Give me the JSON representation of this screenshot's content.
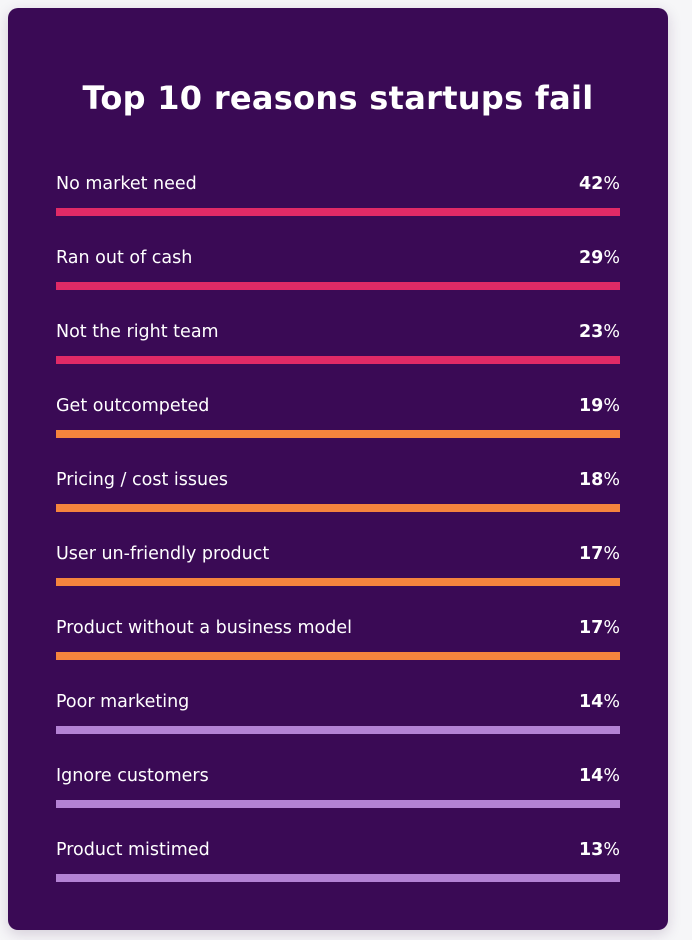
{
  "chart_data": {
    "type": "bar",
    "title": "Top 10 reasons startups fail",
    "unit": "%",
    "categories": [
      "No market need",
      "Ran out of cash",
      "Not the right team",
      "Get outcompeted",
      "Pricing / cost issues",
      "User un-friendly product",
      "Product without a business model",
      "Poor marketing",
      "Ignore customers",
      "Product mistimed"
    ],
    "values": [
      42,
      29,
      23,
      19,
      18,
      17,
      17,
      14,
      14,
      13
    ],
    "bar_colors": [
      "#e02a66",
      "#e02a66",
      "#e02a66",
      "#f5843d",
      "#f5843d",
      "#f5843d",
      "#f5843d",
      "#b382d4",
      "#b382d4",
      "#b382d4"
    ]
  },
  "colors": {
    "background": "#3a0a55",
    "text": "#ffffff"
  }
}
